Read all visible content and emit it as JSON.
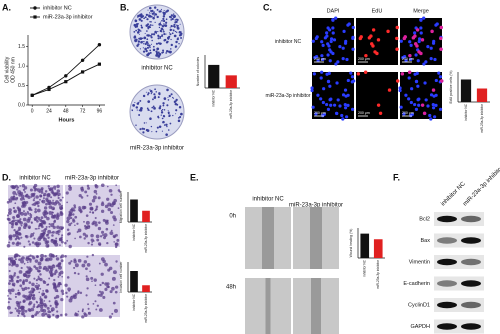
{
  "panel_labels": [
    "A.",
    "B.",
    "C.",
    "D.",
    "E.",
    "F."
  ],
  "colony": {
    "rows": [
      "inhibitor NC",
      "miR-23a-3p inhibitor"
    ]
  },
  "edu": {
    "columns": [
      "DAPI",
      "EdU",
      "Merge"
    ],
    "rows": [
      "inhibitor NC",
      "miR-23a-3p inhibitor"
    ],
    "scale": "200 μm"
  },
  "transwell": {
    "columns": [
      "inhibitor NC",
      "miR-23a-3p inhibitor"
    ]
  },
  "wound": {
    "columns": [
      "inhibitor NC",
      "miR-23a-3p inhibitor"
    ],
    "rows": [
      "0h",
      "48h"
    ]
  },
  "western": {
    "columns": [
      "inhibitor NC",
      "miR-23a-3p inhibitor"
    ],
    "rows": [
      "Bcl2",
      "Bax",
      "Vimentin",
      "E-cadherin",
      "CyclinD1",
      "GAPDH"
    ]
  },
  "chart_data": [
    {
      "type": "line",
      "y_label": [
        "Cell viability",
        "OD 450 nm"
      ],
      "x_label": "Hours",
      "x": [
        0,
        24,
        48,
        72,
        96
      ],
      "xlim": [
        -6,
        104
      ],
      "xticks": [
        0,
        24,
        48,
        72,
        96
      ],
      "ylim": [
        0,
        1.8
      ],
      "yticks": [
        {
          "value": 0,
          "label": "0.0"
        },
        0.5,
        {
          "value": 1,
          "label": "1.0"
        },
        1.5
      ],
      "series": [
        {
          "name": "inhibitor NC",
          "color": "#111111",
          "marker": "circle",
          "values": [
            0.25,
            0.45,
            0.75,
            1.15,
            1.55
          ]
        },
        {
          "name": "miR-23a-3p inhibitor",
          "color": "#111111",
          "marker": "square",
          "values": [
            0.25,
            0.4,
            0.6,
            0.85,
            1.05
          ]
        }
      ]
    },
    {
      "type": "bar",
      "y_label": "Number of colonies",
      "categories": [
        "inhibitor NC",
        "miR-23a-3p inhibitor"
      ],
      "values": [
        420,
        230
      ],
      "colors": [
        "#111111",
        "#e02020"
      ],
      "ylim": [
        0,
        600
      ]
    },
    {
      "type": "bar",
      "y_label": "EdU positive cells (%)",
      "categories": [
        "inhibitor NC",
        "miR-23a-3p inhibitor"
      ],
      "values": [
        30,
        18
      ],
      "colors": [
        "#111111",
        "#e02020"
      ],
      "ylim": [
        0,
        40
      ]
    },
    {
      "type": "bar",
      "y_label": "Migration cell number",
      "categories": [
        "inhibitor NC",
        "miR-23a-3p inhibitor"
      ],
      "values": [
        300,
        150
      ],
      "colors": [
        "#111111",
        "#e02020"
      ],
      "ylim": [
        0,
        400
      ]
    },
    {
      "type": "bar",
      "y_label": "Invasion cell number",
      "categories": [
        "inhibitor NC",
        "miR-23a-3p inhibitor"
      ],
      "values": [
        280,
        90
      ],
      "colors": [
        "#111111",
        "#e02020"
      ],
      "ylim": [
        0,
        400
      ]
    },
    {
      "type": "bar",
      "y_label": "Wound healing (%)",
      "categories": [
        "inhibitor NC",
        "miR-23a-3p inhibitor"
      ],
      "values": [
        65,
        50
      ],
      "colors": [
        "#111111",
        "#e02020"
      ],
      "ylim": [
        0,
        80
      ]
    }
  ]
}
